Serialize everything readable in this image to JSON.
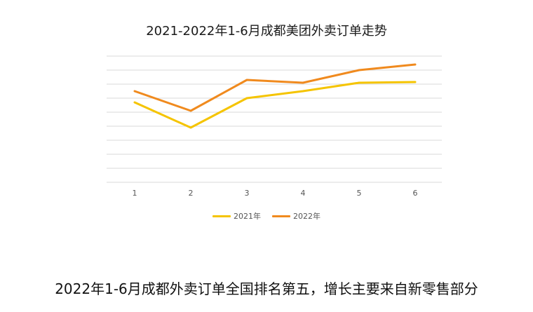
{
  "caption": "2022年1-6月成都外卖订单全国排名第五，增长主要来自新零售部分",
  "chart_data": {
    "type": "line",
    "title": "2021-2022年1-6月成都美团外卖订单走势",
    "xlabel": "",
    "ylabel": "",
    "categories": [
      "1",
      "2",
      "3",
      "4",
      "5",
      "6"
    ],
    "ylim": [
      0,
      9
    ],
    "grid": true,
    "legend_position": "bottom",
    "series": [
      {
        "name": "2021年",
        "color": "#F5C400",
        "values": [
          5.7,
          3.9,
          6.0,
          6.5,
          7.1,
          7.15
        ]
      },
      {
        "name": "2022年",
        "color": "#F08A1E",
        "values": [
          6.5,
          5.1,
          7.3,
          7.1,
          8.0,
          8.4
        ]
      }
    ]
  }
}
